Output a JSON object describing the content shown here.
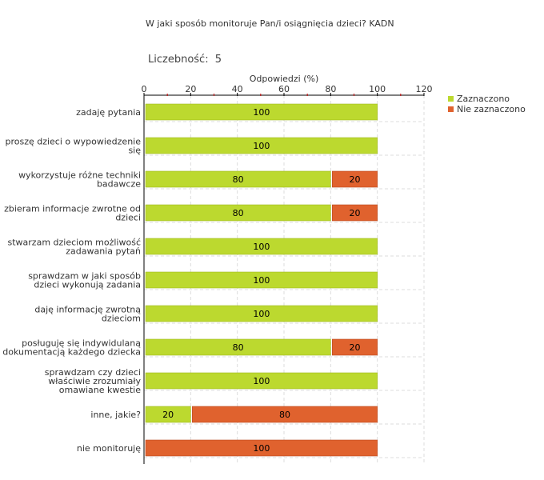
{
  "title": "W jaki sposób monitoruje Pan/i osiągnięcia dzieci?  KADN",
  "count_label": "Liczebność:",
  "count_value": "5",
  "colors": {
    "zaznaczono": "#bcd92f",
    "nie_zaznaczono": "#e0622e",
    "grid": "#dddddd"
  },
  "chart_data": {
    "type": "bar",
    "orientation": "horizontal-stacked",
    "xlabel": "Odpowiedzi (%)",
    "xlim": [
      0,
      120
    ],
    "xticks": [
      0,
      20,
      40,
      60,
      80,
      100,
      120
    ],
    "legend_position": "top-right",
    "categories": [
      [
        "zadaję pytania"
      ],
      [
        "proszę dzieci o wypowiedzenie",
        "się"
      ],
      [
        "wykorzystuje różne techniki",
        "badawcze"
      ],
      [
        "zbieram informacje zwrotne od",
        "dzieci"
      ],
      [
        "stwarzam dzieciom możliwość",
        "zadawania pytań"
      ],
      [
        "sprawdzam w jaki sposób",
        "dzieci wykonują zadania"
      ],
      [
        "daję informację zwrotną",
        "dzieciom"
      ],
      [
        "posługuję się indywidulaną",
        "dokumentacją każdego dziecka"
      ],
      [
        "sprawdzam czy dzieci",
        "właściwie zrozumiały",
        "omawiane kwestie"
      ],
      [
        "inne, jakie?"
      ],
      [
        "nie monitoruję"
      ]
    ],
    "series": [
      {
        "name": "Zaznaczono",
        "values": [
          100,
          100,
          80,
          80,
          100,
          100,
          100,
          80,
          100,
          20,
          0
        ]
      },
      {
        "name": "Nie zaznaczono",
        "values": [
          0,
          0,
          20,
          20,
          0,
          0,
          0,
          20,
          0,
          80,
          100
        ]
      }
    ]
  }
}
